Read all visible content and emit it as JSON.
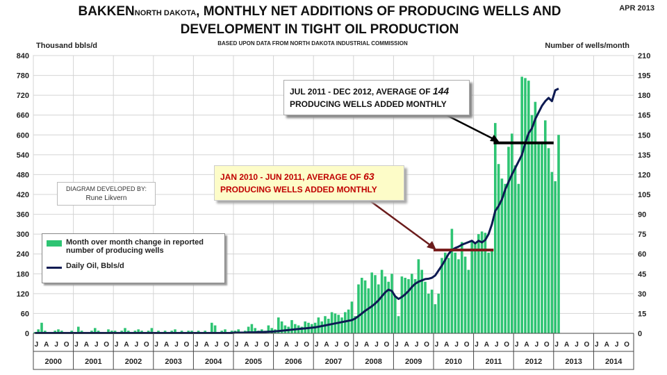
{
  "header": {
    "title_part1": "BAKKEN",
    "title_part2": "NORTH DAKOTA",
    "title_part3": ", MONTHLY NET ADDITIONS OF PRODUCING WELLS AND",
    "title_line2": "DEVELOPMENT IN TIGHT OIL PRODUCTION",
    "subtitle": "BASED UPON DATA FROM NORTH DAKOTA INDUSTRIAL COMMISSION",
    "date": "APR 2013"
  },
  "axes": {
    "left_label": "Thousand bbls/d",
    "right_label": "Number of wells/month"
  },
  "callouts": {
    "c1_line1_a": "JUL 2011 - DEC 2012, AVERAGE OF ",
    "c1_line1_num": "144",
    "c1_line2": "PRODUCING WELLS ADDED MONTHLY",
    "c2_line1_a": "JAN 2010 - JUN 2011, AVERAGE OF ",
    "c2_line1_num": "63",
    "c2_line2": "PRODUCING WELLS ADDED MONTHLY"
  },
  "credit": {
    "line1": "DIAGRAM DEVELOPED BY:",
    "line2": "Rune Likvern"
  },
  "legend": {
    "bar_label": "Month over month change in reported number of producing wells",
    "line_label": "Daily Oil, Bbls/d"
  },
  "chart_data": {
    "type": "bar",
    "colors": {
      "bars": "#2ec473",
      "line": "#0d1a52",
      "avg1": "#000000",
      "avg2": "#7b1e1e"
    },
    "y_left": {
      "min": 0,
      "max": 840,
      "step": 60,
      "ticks": [
        0,
        60,
        120,
        180,
        240,
        300,
        360,
        420,
        480,
        540,
        600,
        660,
        720,
        780,
        840
      ]
    },
    "y_right": {
      "min": 0,
      "max": 210,
      "step": 15,
      "ticks": [
        0,
        15,
        30,
        45,
        60,
        75,
        90,
        105,
        120,
        135,
        150,
        165,
        180,
        195,
        210
      ]
    },
    "years": [
      "2000",
      "2001",
      "2002",
      "2003",
      "2004",
      "2005",
      "2006",
      "2007",
      "2008",
      "2009",
      "2010",
      "2011",
      "2012",
      "2013",
      "2014"
    ],
    "month_letters": [
      "J",
      "A",
      "J",
      "O"
    ],
    "grid": true,
    "legend_position": "bottom-left",
    "wells_per_month": [
      1,
      3,
      8,
      2,
      1,
      1,
      2,
      3,
      2,
      1,
      1,
      2,
      1,
      5,
      2,
      1,
      1,
      2,
      4,
      2,
      1,
      1,
      3,
      2,
      2,
      1,
      2,
      4,
      2,
      1,
      2,
      3,
      2,
      1,
      2,
      4,
      1,
      2,
      1,
      2,
      1,
      2,
      3,
      1,
      2,
      1,
      2,
      2,
      1,
      2,
      1,
      2,
      1,
      8,
      6,
      1,
      2,
      3,
      1,
      2,
      2,
      3,
      1,
      2,
      5,
      7,
      4,
      2,
      3,
      2,
      6,
      4,
      3,
      12,
      9,
      6,
      5,
      10,
      7,
      6,
      5,
      9,
      8,
      7,
      8,
      12,
      9,
      13,
      11,
      16,
      15,
      14,
      12,
      16,
      18,
      24,
      13,
      37,
      42,
      40,
      34,
      46,
      44,
      37,
      48,
      43,
      39,
      45,
      28,
      13,
      43,
      42,
      41,
      45,
      41,
      56,
      48,
      39,
      30,
      33,
      22,
      30,
      57,
      61,
      57,
      79,
      61,
      56,
      69,
      58,
      48,
      70,
      69,
      75,
      77,
      76,
      61,
      62,
      159,
      128,
      117,
      113,
      141,
      151,
      127,
      113,
      194,
      193,
      191,
      165,
      175,
      143,
      145,
      161,
      140,
      122,
      115,
      150
    ],
    "wells_avg_jul2011_dec2012": 144,
    "wells_avg_jan2010_jun2011": 63,
    "daily_oil_kbd": [
      1,
      1,
      1,
      1,
      1,
      1,
      1,
      1,
      1,
      1,
      1,
      1,
      1,
      1,
      1,
      1,
      1,
      1,
      1,
      1,
      1,
      1,
      1,
      1,
      1,
      1,
      1,
      1,
      1,
      1,
      1,
      1,
      1,
      1,
      1,
      1,
      1,
      1,
      1,
      1,
      1,
      1,
      1,
      1,
      1,
      1,
      1,
      1,
      1,
      1,
      1,
      1,
      1,
      1,
      1,
      1,
      1,
      1,
      1,
      1,
      2,
      2,
      2,
      2,
      3,
      3,
      3,
      4,
      4,
      4,
      5,
      5,
      6,
      7,
      8,
      9,
      10,
      11,
      12,
      13,
      14,
      15,
      16,
      17,
      18,
      20,
      22,
      24,
      26,
      28,
      30,
      32,
      34,
      36,
      38,
      40,
      45,
      52,
      60,
      68,
      75,
      82,
      90,
      100,
      112,
      124,
      132,
      128,
      112,
      104,
      110,
      118,
      128,
      140,
      150,
      156,
      160,
      164,
      165,
      168,
      175,
      190,
      205,
      222,
      240,
      252,
      258,
      262,
      268,
      272,
      276,
      280,
      272,
      280,
      275,
      282,
      300,
      330,
      370,
      385,
      405,
      435,
      458,
      480,
      500,
      520,
      540,
      575,
      605,
      620,
      648,
      668,
      688,
      702,
      712,
      702,
      735,
      740
    ]
  }
}
